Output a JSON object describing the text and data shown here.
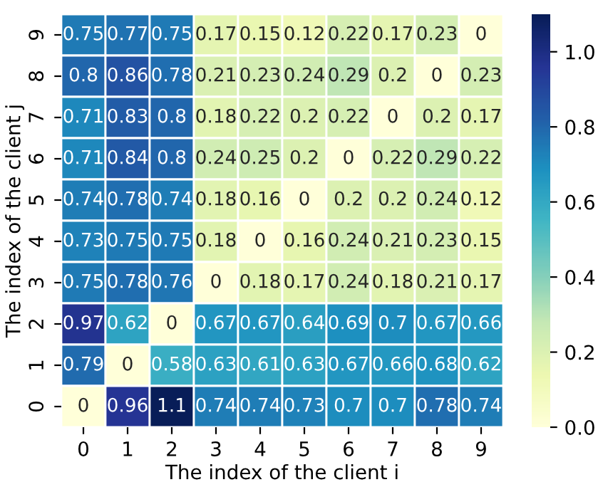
{
  "chart_data": {
    "type": "heatmap",
    "xlabel": "The index of the client i",
    "ylabel": "The index of the client j",
    "categories": [
      "0",
      "1",
      "2",
      "3",
      "4",
      "5",
      "6",
      "7",
      "8",
      "9"
    ],
    "y_categories": [
      "9",
      "8",
      "7",
      "6",
      "5",
      "4",
      "3",
      "2",
      "1",
      "0"
    ],
    "cells": [
      [
        0.75,
        0.77,
        0.75,
        0.17,
        0.15,
        0.12,
        0.22,
        0.17,
        0.23,
        0
      ],
      [
        0.8,
        0.86,
        0.78,
        0.21,
        0.23,
        0.24,
        0.29,
        0.2,
        0,
        0.23
      ],
      [
        0.71,
        0.83,
        0.8,
        0.18,
        0.22,
        0.2,
        0.22,
        0,
        0.2,
        0.17
      ],
      [
        0.71,
        0.84,
        0.8,
        0.24,
        0.25,
        0.2,
        0,
        0.22,
        0.29,
        0.22
      ],
      [
        0.74,
        0.78,
        0.74,
        0.18,
        0.16,
        0,
        0.2,
        0.2,
        0.24,
        0.12
      ],
      [
        0.73,
        0.75,
        0.75,
        0.18,
        0,
        0.16,
        0.24,
        0.21,
        0.23,
        0.15
      ],
      [
        0.75,
        0.78,
        0.76,
        0,
        0.18,
        0.17,
        0.24,
        0.18,
        0.21,
        0.17
      ],
      [
        0.97,
        0.62,
        0,
        0.67,
        0.67,
        0.64,
        0.69,
        0.7,
        0.67,
        0.66
      ],
      [
        0.79,
        0,
        0.58,
        0.63,
        0.61,
        0.63,
        0.67,
        0.66,
        0.68,
        0.62
      ],
      [
        0,
        0.96,
        1.1,
        0.74,
        0.74,
        0.73,
        0.7,
        0.7,
        0.78,
        0.74
      ]
    ],
    "clim": [
      0,
      1.1
    ],
    "cticks": [
      {
        "value": 0,
        "label": "0.0"
      },
      0.2,
      0.4,
      0.6,
      0.8,
      {
        "value": 1,
        "label": "1.0"
      }
    ],
    "data_labels": true
  }
}
